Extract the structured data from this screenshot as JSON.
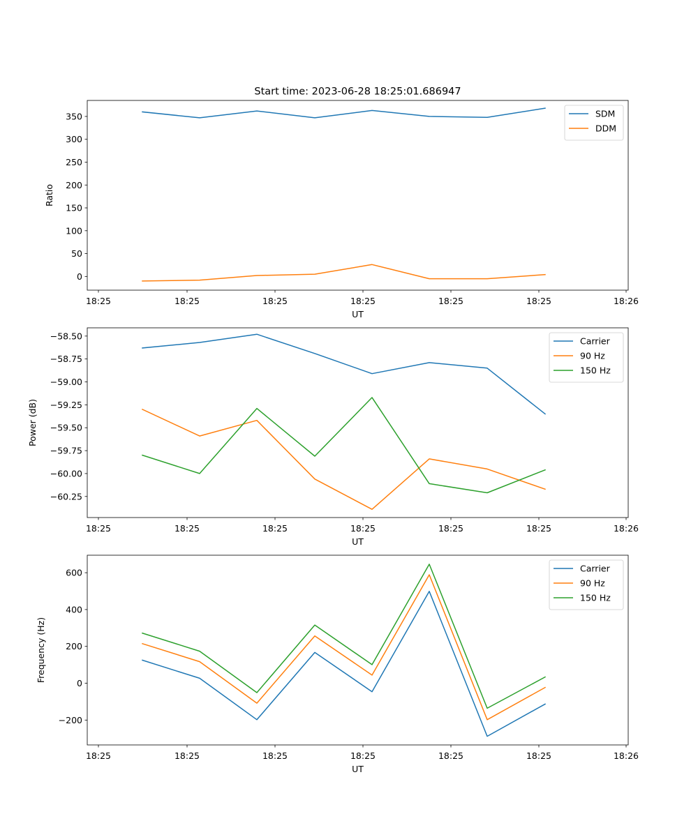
{
  "figure_title": "Start time: 2023-06-28 18:25:01.686947",
  "colors": {
    "blue": "#1f77b4",
    "orange": "#ff7f0e",
    "green": "#2ca02c",
    "axis": "#000000"
  },
  "chart_data": [
    {
      "type": "line",
      "title": "Start time: 2023-06-28 18:25:01.686947",
      "xlabel": "UT",
      "ylabel": "Ratio",
      "x_tick_labels": [
        "18:25",
        "18:25",
        "18:25",
        "18:25",
        "18:25",
        "18:25",
        "18:26"
      ],
      "y_ticks": [
        0,
        50,
        100,
        150,
        200,
        250,
        300,
        350
      ],
      "ylim": [
        -30,
        385
      ],
      "legend_position": "upper right",
      "grid": false,
      "series": [
        {
          "name": "SDM",
          "color": "#1f77b4",
          "values": [
            360,
            347,
            362,
            347,
            363,
            350,
            348,
            368
          ]
        },
        {
          "name": "DDM",
          "color": "#ff7f0e",
          "values": [
            -10,
            -8,
            2,
            5,
            26,
            -5,
            -5,
            4
          ]
        }
      ]
    },
    {
      "type": "line",
      "title": "",
      "xlabel": "UT",
      "ylabel": "Power (dB)",
      "x_tick_labels": [
        "18:25",
        "18:25",
        "18:25",
        "18:25",
        "18:25",
        "18:25",
        "18:26"
      ],
      "y_ticks": [
        -60.25,
        -60.0,
        -59.75,
        -59.5,
        -59.25,
        -59.0,
        -58.75,
        -58.5
      ],
      "y_tick_labels": [
        "−60.25",
        "−60.00",
        "−59.75",
        "−59.50",
        "−59.25",
        "−59.00",
        "−58.75",
        "−58.50"
      ],
      "ylim": [
        -60.48,
        -58.41
      ],
      "legend_position": "upper right",
      "grid": false,
      "series": [
        {
          "name": "Carrier",
          "color": "#1f77b4",
          "values": [
            -58.63,
            -58.57,
            -58.48,
            -58.69,
            -58.91,
            -58.79,
            -58.85,
            -59.35
          ]
        },
        {
          "name": "90 Hz",
          "color": "#ff7f0e",
          "values": [
            -59.3,
            -59.59,
            -59.42,
            -60.06,
            -60.39,
            -59.84,
            -59.95,
            -60.17
          ]
        },
        {
          "name": "150 Hz",
          "color": "#2ca02c",
          "values": [
            -59.8,
            -60.0,
            -59.29,
            -59.81,
            -59.17,
            -60.11,
            -60.21,
            -59.96
          ]
        }
      ]
    },
    {
      "type": "line",
      "title": "",
      "xlabel": "UT",
      "ylabel": "Frequency (Hz)",
      "x_tick_labels": [
        "18:25",
        "18:25",
        "18:25",
        "18:25",
        "18:25",
        "18:25",
        "18:26"
      ],
      "y_ticks": [
        -200,
        0,
        200,
        400,
        600
      ],
      "y_tick_labels": [
        "−200",
        "0",
        "200",
        "400",
        "600"
      ],
      "ylim": [
        -335,
        695
      ],
      "legend_position": "upper right",
      "grid": false,
      "series": [
        {
          "name": "Carrier",
          "color": "#1f77b4",
          "values": [
            125,
            27,
            -198,
            167,
            -46,
            499,
            -288,
            -113
          ]
        },
        {
          "name": "90 Hz",
          "color": "#ff7f0e",
          "values": [
            215,
            117,
            -108,
            257,
            44,
            589,
            -198,
            -23
          ]
        },
        {
          "name": "150 Hz",
          "color": "#2ca02c",
          "values": [
            272,
            174,
            -51,
            316,
            101,
            646,
            -136,
            34
          ]
        }
      ]
    }
  ]
}
